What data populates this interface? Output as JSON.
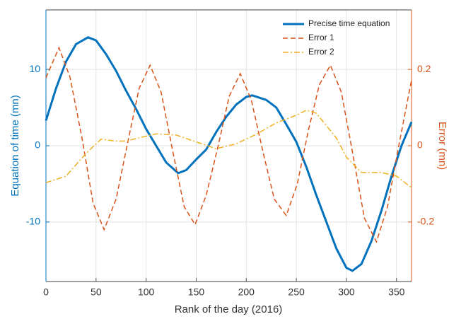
{
  "chart_data": {
    "type": "line",
    "xlabel": "Rank of the day (2016)",
    "ylabel": "Equation of time (mn)",
    "y2label": "Error (mn)",
    "xlim": [
      0,
      365
    ],
    "xticks": [
      0,
      50,
      100,
      150,
      200,
      250,
      300,
      350
    ],
    "ylim": [
      -17.8,
      17.8
    ],
    "yticks": [
      -10,
      0,
      10
    ],
    "y2lim": [
      -0.356,
      0.356
    ],
    "y2ticks": [
      -0.2,
      0,
      0.2
    ],
    "grid": true,
    "legend": "top-right",
    "series": [
      {
        "name": "Precise time equation",
        "color": "#0072bd",
        "style": "solid",
        "x": [
          0,
          10,
          20,
          30,
          42,
          50,
          60,
          70,
          80,
          90,
          100,
          110,
          120,
          132,
          140,
          150,
          160,
          170,
          180,
          190,
          200,
          206,
          220,
          230,
          240,
          250,
          260,
          270,
          280,
          290,
          300,
          306,
          315,
          325,
          335,
          345,
          355,
          365
        ],
        "values": [
          3.3,
          7.5,
          11,
          13.3,
          14.2,
          13.8,
          12,
          9.8,
          7.2,
          4.8,
          2.2,
          0,
          -2.2,
          -3.6,
          -3.2,
          -1.8,
          -0.5,
          1.8,
          3.8,
          5.4,
          6.4,
          6.6,
          6,
          5,
          2.8,
          0.5,
          -2.8,
          -6.5,
          -10,
          -13.5,
          -16,
          -16.4,
          -15.5,
          -12.5,
          -8.5,
          -4,
          0,
          3.1
        ]
      },
      {
        "name": "Error 1",
        "color": "#d95319",
        "style": "dashed",
        "axis": "y2",
        "x": [
          0,
          13,
          24,
          36,
          47,
          58,
          70,
          81,
          93,
          104,
          115,
          127,
          138,
          149,
          160,
          172,
          183,
          194,
          205,
          217,
          228,
          240,
          251,
          262,
          273,
          284,
          295,
          307,
          318,
          330,
          341,
          353,
          365
        ],
        "values": [
          0.178,
          0.257,
          0.18,
          0.02,
          -0.15,
          -0.22,
          -0.14,
          0,
          0.15,
          0.211,
          0.14,
          -0.02,
          -0.16,
          -0.207,
          -0.13,
          0,
          0.13,
          0.189,
          0.12,
          -0.02,
          -0.14,
          -0.183,
          -0.1,
          0.04,
          0.16,
          0.211,
          0.14,
          -0.03,
          -0.19,
          -0.252,
          -0.16,
          0.01,
          0.172
        ]
      },
      {
        "name": "Error 2",
        "color": "#edb120",
        "style": "dashdot",
        "axis": "y2",
        "x": [
          0,
          20,
          40,
          55,
          70,
          80,
          95,
          110,
          130,
          150,
          170,
          190,
          210,
          230,
          250,
          260,
          270,
          290,
          300,
          315,
          335,
          350,
          365
        ],
        "values": [
          -0.097,
          -0.08,
          -0.02,
          0.017,
          0.012,
          0.012,
          0.022,
          0.031,
          0.028,
          0.01,
          -0.008,
          0.005,
          0.03,
          0.06,
          0.08,
          0.093,
          0.085,
          0.02,
          -0.03,
          -0.07,
          -0.07,
          -0.08,
          -0.11
        ]
      }
    ]
  }
}
